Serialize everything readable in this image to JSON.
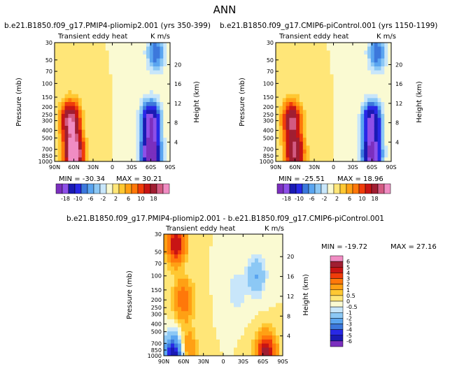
{
  "page_title": "ANN",
  "colors": {
    "scale6": [
      "#7b2fbe",
      "#8e4fe8",
      "#1a1ab4",
      "#2828e6",
      "#3c78dc",
      "#5aa5f0",
      "#8cc8f5",
      "#c8e6fa",
      "#fafad2",
      "#ffe678",
      "#ffc832",
      "#ffa014",
      "#ff780a",
      "#f03c0a",
      "#c81414",
      "#a01e32",
      "#d25a82",
      "#f08cc3"
    ],
    "scale_diff": [
      "#7b2fbe",
      "#1a1ab4",
      "#2828e6",
      "#3c78dc",
      "#5aa5f0",
      "#8cc8f5",
      "#c8e6fa",
      "#fafad2",
      "#ffe678",
      "#ffc832",
      "#ffa014",
      "#ff780a",
      "#f03c0a",
      "#c81414",
      "#a01e32",
      "#f08cc3"
    ]
  },
  "chart_data": [
    {
      "type": "heatmap",
      "id": "panel1",
      "title": "b.e21.B1850.f09_g17.PMIP4-pliomip2.001 (yrs 350-399)",
      "left_label": "Transient eddy heat",
      "right_label": "K m/s",
      "ylabel": "Pressure (mb)",
      "y2label": "Height (km)",
      "xticks": [
        "90N",
        "60N",
        "30N",
        "0",
        "30S",
        "60S",
        "90S"
      ],
      "yticks": [
        "30",
        "50",
        "70",
        "100",
        "150",
        "200",
        "250",
        "300",
        "400",
        "500",
        "700",
        "850",
        "1000"
      ],
      "y2ticks": [
        "4",
        "8",
        "12",
        "16",
        "20"
      ],
      "colorbar_labels": [
        "-18",
        "-10",
        "-6",
        "-2",
        "2",
        "6",
        "10",
        "18"
      ],
      "min_label": "MIN = -30.34",
      "max_label": "MAX = 30.21",
      "min": -30.34,
      "max": 30.21,
      "features": [
        {
          "lat": 65,
          "p": 300,
          "value": 22
        },
        {
          "lat": 60,
          "p": 780,
          "value": 30
        },
        {
          "lat": -60,
          "p": 300,
          "value": -22
        },
        {
          "lat": -60,
          "p": 800,
          "value": -30
        },
        {
          "lat": -68,
          "p": 40,
          "value": -10
        }
      ]
    },
    {
      "type": "heatmap",
      "id": "panel2",
      "title": "b.e21.B1850.f09_g17.CMIP6-piControl.001 (yrs 1150-1199)",
      "left_label": "Transient eddy heat",
      "right_label": "K m/s",
      "ylabel": "Pressure (mb)",
      "y2label": "Height (km)",
      "xticks": [
        "90N",
        "60N",
        "30N",
        "0",
        "30S",
        "60S",
        "90S"
      ],
      "yticks": [
        "30",
        "50",
        "70",
        "100",
        "150",
        "200",
        "250",
        "300",
        "400",
        "500",
        "700",
        "850",
        "1000"
      ],
      "y2ticks": [
        "4",
        "8",
        "12",
        "16",
        "20"
      ],
      "colorbar_labels": [
        "-18",
        "-10",
        "-6",
        "-2",
        "2",
        "6",
        "10",
        "18"
      ],
      "min_label": "MIN = -25.51",
      "max_label": "MAX = 18.96",
      "min": -25.51,
      "max": 18.96,
      "features": [
        {
          "lat": 65,
          "p": 300,
          "value": 19
        },
        {
          "lat": 60,
          "p": 780,
          "value": 19
        },
        {
          "lat": -60,
          "p": 300,
          "value": -20
        },
        {
          "lat": -60,
          "p": 800,
          "value": -25
        },
        {
          "lat": -68,
          "p": 40,
          "value": -10
        }
      ]
    },
    {
      "type": "heatmap",
      "id": "panel3",
      "title": "b.e21.B1850.f09_g17.PMIP4-pliomip2.001 - b.e21.B1850.f09_g17.CMIP6-piControl.001",
      "left_label": "Transient eddy heat",
      "right_label": "K m/s",
      "ylabel": "Pressure (mb)",
      "y2label": "Height (km)",
      "xticks": [
        "90N",
        "60N",
        "30N",
        "0",
        "30S",
        "60S",
        "90S"
      ],
      "yticks": [
        "30",
        "50",
        "70",
        "100",
        "150",
        "200",
        "250",
        "300",
        "400",
        "500",
        "700",
        "850",
        "1000"
      ],
      "y2ticks": [
        "4",
        "8",
        "12",
        "16",
        "20"
      ],
      "colorbar_labels": [
        "6",
        "5",
        "4",
        "3",
        "2",
        "1",
        "0.5",
        "0",
        "-0.5",
        "-1",
        "-2",
        "-3",
        "-4",
        "-5",
        "-6"
      ],
      "min_label": "MIN = -19.72",
      "max_label": "MAX = 27.16",
      "min": -19.72,
      "max": 27.16,
      "features": [
        {
          "lat": 72,
          "p": 40,
          "value": 5
        },
        {
          "lat": 60,
          "p": 200,
          "value": 3
        },
        {
          "lat": 55,
          "p": 800,
          "value": 2
        },
        {
          "lat": -20,
          "p": 150,
          "value": -1
        },
        {
          "lat": -50,
          "p": 100,
          "value": -2
        },
        {
          "lat": -65,
          "p": 950,
          "value": 6
        },
        {
          "lat": 75,
          "p": 980,
          "value": -6
        }
      ]
    }
  ]
}
